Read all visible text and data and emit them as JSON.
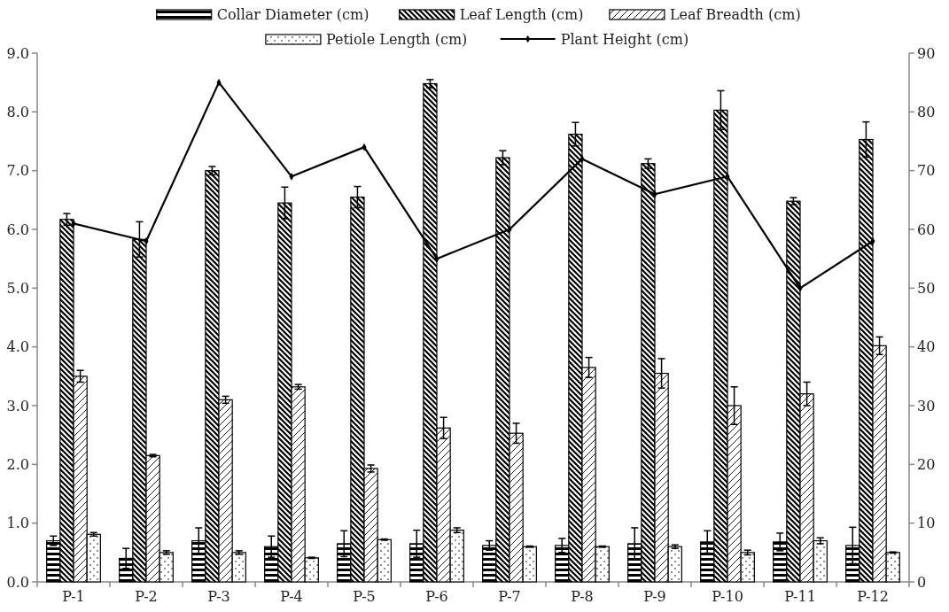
{
  "chart_data": {
    "type": "bar",
    "categories": [
      "P-1",
      "P-2",
      "P-3",
      "P-4",
      "P-5",
      "P-6",
      "P-7",
      "P-8",
      "P-9",
      "P-10",
      "P-11",
      "P-12"
    ],
    "series": [
      {
        "name": "Collar Diameter (cm)",
        "color": "#000000",
        "values": [
          0.7,
          0.4,
          0.7,
          0.6,
          0.65,
          0.65,
          0.62,
          0.62,
          0.65,
          0.68,
          0.68,
          0.62
        ],
        "errors": [
          0.08,
          0.17,
          0.22,
          0.18,
          0.22,
          0.23,
          0.08,
          0.12,
          0.27,
          0.19,
          0.15,
          0.31
        ]
      },
      {
        "name": "Leaf Length (cm)",
        "color": "#000000",
        "values": [
          6.17,
          5.83,
          7.0,
          6.45,
          6.55,
          8.48,
          7.22,
          7.62,
          7.12,
          8.03,
          6.48,
          7.53
        ],
        "errors": [
          0.1,
          0.3,
          0.07,
          0.27,
          0.18,
          0.07,
          0.12,
          0.2,
          0.08,
          0.33,
          0.06,
          0.3
        ]
      },
      {
        "name": "Leaf Breadth (cm)",
        "color": "#000000",
        "values": [
          3.5,
          2.15,
          3.1,
          3.32,
          1.93,
          2.62,
          2.53,
          3.65,
          3.55,
          3.0,
          3.2,
          4.02
        ],
        "errors": [
          0.1,
          0.02,
          0.06,
          0.04,
          0.06,
          0.18,
          0.17,
          0.17,
          0.25,
          0.32,
          0.2,
          0.15
        ]
      },
      {
        "name": "Petiole Length (cm)",
        "color": "#000000",
        "values": [
          0.81,
          0.5,
          0.5,
          0.41,
          0.72,
          0.88,
          0.6,
          0.6,
          0.6,
          0.5,
          0.7,
          0.5
        ],
        "errors": [
          0.03,
          0.03,
          0.03,
          0.01,
          0.01,
          0.04,
          0.01,
          0.01,
          0.03,
          0.04,
          0.05,
          0.01
        ]
      },
      {
        "name": "Plant Height (cm)",
        "type": "line",
        "axis": "y2",
        "color": "#000000",
        "values": [
          61,
          58,
          85,
          69,
          74,
          55,
          60,
          72,
          66,
          69,
          50,
          58
        ]
      }
    ],
    "ylim": [
      0,
      9
    ],
    "yticks": [
      {
        "value": 0,
        "label": "0.0"
      },
      {
        "value": 1,
        "label": "1.0"
      },
      {
        "value": 2,
        "label": "2.0"
      },
      {
        "value": 3,
        "label": "3.0"
      },
      {
        "value": 4,
        "label": "4.0"
      },
      {
        "value": 5,
        "label": "5.0"
      },
      {
        "value": 6,
        "label": "6.0"
      },
      {
        "value": 7,
        "label": "7.0"
      },
      {
        "value": 8,
        "label": "8.0"
      },
      {
        "value": 9,
        "label": "9.0"
      }
    ],
    "y2lim": [
      0,
      90
    ],
    "y2ticks": [
      0,
      10,
      20,
      30,
      40,
      50,
      60,
      70,
      80,
      90
    ],
    "grid": false,
    "legend": "top",
    "marker": "diamond",
    "line_style": "solid"
  }
}
